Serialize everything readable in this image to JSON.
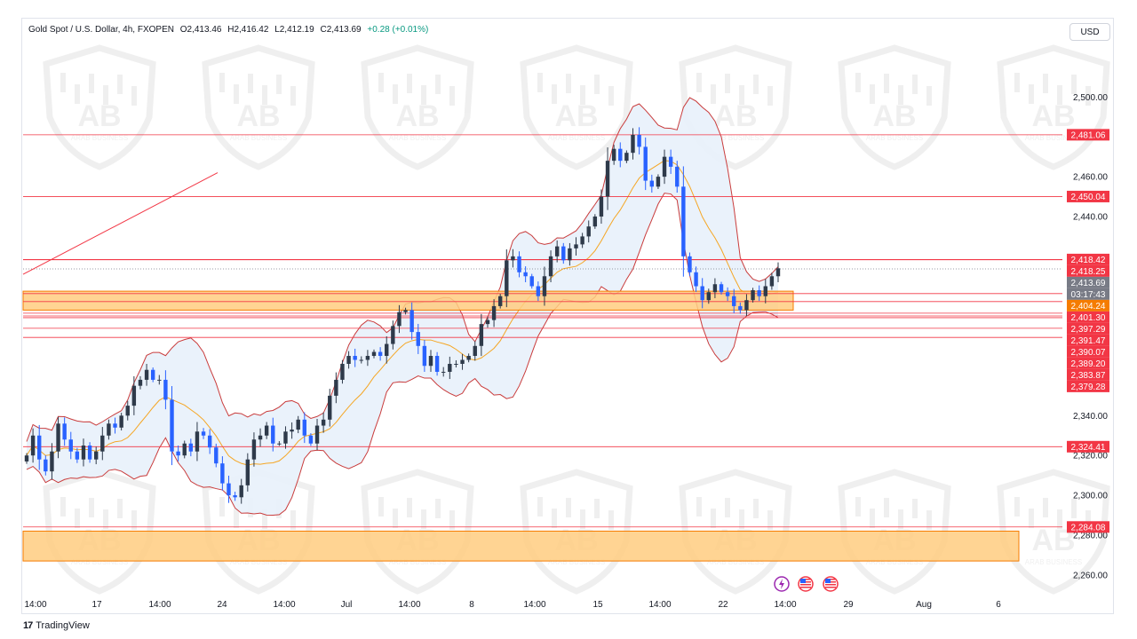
{
  "header": {
    "symbol": "Gold Spot / U.S. Dollar, 4h, FXOPEN",
    "open": "O2,413.46",
    "high": "H2,416.42",
    "low": "L2,412.19",
    "close": "C2,413.69",
    "change": "+0.28 (+0.01%)"
  },
  "currency_button": "USD",
  "footer": {
    "logo": "17",
    "brand": "TradingView"
  },
  "watermark_text": "ARAB BUSINESS",
  "icons": [
    "lightning-icon",
    "us-flag-icon",
    "us-flag-icon"
  ],
  "colors": {
    "up": "#089981",
    "down": "#2962ff",
    "level": "#f23645",
    "bands": "#c93c3c",
    "band_fill": "#e8f1fb",
    "basis": "#f5a623",
    "zone": "#ffcc80",
    "zone_border": "#f57c00"
  },
  "chart_data": {
    "type": "candlestick",
    "timeframe": "4h",
    "yaxis_ticks": [
      "2,500.00",
      "2,460.00",
      "2,440.00",
      "2,340.00",
      "2,320.00",
      "2,300.00",
      "2,280.00",
      "2,260.00"
    ],
    "xaxis_ticks": [
      "14:00",
      "17",
      "14:00",
      "24",
      "14:00",
      "Jul",
      "14:00",
      "8",
      "14:00",
      "15",
      "14:00",
      "22",
      "14:00",
      "29",
      "Aug",
      "6"
    ],
    "ylim": [
      2251,
      2522
    ],
    "horizontal_levels": [
      2481.06,
      2450.04,
      2418.42,
      2418.25,
      2401.3,
      2397.29,
      2391.47,
      2390.07,
      2389.2,
      2383.87,
      2379.28,
      2324.41,
      2284.08
    ],
    "price_labels": [
      {
        "text": "2,481.06",
        "value": 2481.06,
        "kind": "level"
      },
      {
        "text": "2,450.04",
        "value": 2450.04,
        "kind": "level"
      },
      {
        "text": "2,418.42",
        "value": 2418.42,
        "kind": "level"
      },
      {
        "text": "2,418.25",
        "value": 2418.25,
        "kind": "level"
      },
      {
        "text": "2,413.69",
        "value": 2413.69,
        "kind": "current"
      },
      {
        "text": "03:17:43",
        "value": 2413.69,
        "kind": "timer"
      },
      {
        "text": "2,404.24",
        "value": 2404.24,
        "kind": "basis"
      },
      {
        "text": "2,401.30",
        "value": 2401.3,
        "kind": "level"
      },
      {
        "text": "2,397.29",
        "value": 2397.29,
        "kind": "level"
      },
      {
        "text": "2,391.47",
        "value": 2391.47,
        "kind": "level"
      },
      {
        "text": "2,390.07",
        "value": 2390.07,
        "kind": "level"
      },
      {
        "text": "2,389.20",
        "value": 2389.2,
        "kind": "level"
      },
      {
        "text": "2,383.87",
        "value": 2383.87,
        "kind": "level"
      },
      {
        "text": "2,379.28",
        "value": 2379.28,
        "kind": "level"
      },
      {
        "text": "2,324.41",
        "value": 2324.41,
        "kind": "level"
      },
      {
        "text": "2,284.08",
        "value": 2284.08,
        "kind": "level"
      }
    ],
    "zones": [
      {
        "from": 2393,
        "to": 2402.5
      },
      {
        "from": 2267,
        "to": 2282
      }
    ],
    "trendline": [
      [
        2398,
        2396
      ],
      [
        2470,
        2412
      ]
    ],
    "price_path": [
      2320,
      2330,
      2318,
      2312,
      2322,
      2336,
      2328,
      2322,
      2318,
      2325,
      2318,
      2322,
      2330,
      2336,
      2334,
      2340,
      2345,
      2355,
      2358,
      2363,
      2358,
      2358,
      2348,
      2322,
      2320,
      2326,
      2322,
      2332,
      2330,
      2324,
      2316,
      2306,
      2300,
      2299,
      2305,
      2318,
      2328,
      2330,
      2335,
      2326,
      2326,
      2332,
      2333,
      2338,
      2330,
      2326,
      2335,
      2338,
      2350,
      2358,
      2366,
      2370,
      2368,
      2368,
      2370,
      2372,
      2370,
      2376,
      2385,
      2392,
      2393,
      2382,
      2375,
      2365,
      2370,
      2362,
      2362,
      2366,
      2366,
      2368,
      2370,
      2375,
      2386,
      2388,
      2395,
      2400,
      2418,
      2420,
      2412,
      2410,
      2405,
      2400,
      2410,
      2420,
      2425,
      2418,
      2424,
      2426,
      2430,
      2435,
      2440,
      2450,
      2468,
      2474,
      2468,
      2472,
      2481,
      2475,
      2458,
      2455,
      2460,
      2470,
      2465,
      2455,
      2420,
      2412,
      2405,
      2398,
      2402,
      2406,
      2402,
      2400,
      2395,
      2393,
      2398,
      2403,
      2400,
      2405,
      2410,
      2414
    ]
  }
}
